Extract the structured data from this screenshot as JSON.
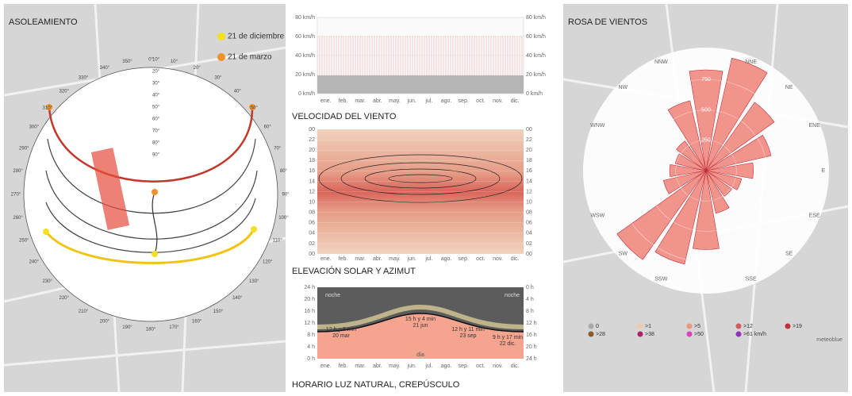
{
  "months": [
    "ene.",
    "feb.",
    "mar.",
    "abr.",
    "may.",
    "jun.",
    "jul.",
    "ago.",
    "sep.",
    "oct.",
    "nov.",
    "dic."
  ],
  "sun_chart": {
    "title": "ASOLEAMIENTO",
    "legend": [
      {
        "label": "21 de diciembre",
        "color": "#f4e01c"
      },
      {
        "label": "21 de marzo",
        "color": "#f0922c"
      }
    ],
    "azimuth_labels": [
      "0°",
      "10°",
      "20°",
      "30°",
      "40°",
      "50°",
      "60°",
      "70°",
      "80°",
      "90°",
      "100°",
      "110°",
      "120°",
      "130°",
      "140°",
      "150°",
      "160°",
      "170°",
      "180°",
      "190°",
      "200°",
      "210°",
      "220°",
      "230°",
      "240°",
      "250°",
      "260°",
      "270°",
      "280°",
      "290°",
      "300°",
      "310°",
      "320°",
      "330°",
      "340°",
      "350°"
    ],
    "altitude_labels": [
      "10°",
      "20°",
      "30°",
      "40°",
      "50°",
      "60°",
      "70°",
      "80°",
      "90°"
    ]
  },
  "wind_speed": {
    "title": "VELOCIDAD DEL VIENTO",
    "axis_labels": [
      "80 km/h",
      "60 km/h",
      "40 km/h",
      "20 km/h",
      "0 km/h"
    ]
  },
  "solar_elevation": {
    "title": "ELEVACIÓN SOLAR Y AZIMUT",
    "axis_labels": [
      "00",
      "22",
      "20",
      "18",
      "16",
      "14",
      "12",
      "10",
      "08",
      "06",
      "04",
      "02",
      "00"
    ]
  },
  "daylight": {
    "title": "HORARIO LUZ NATURAL, CREPÚSCULO",
    "left_labels": [
      "24 h",
      "20 h",
      "16 h",
      "12 h",
      "8 h",
      "4 h",
      "0 h"
    ],
    "right_labels": [
      "0 h",
      "4 h",
      "8 h",
      "12 h",
      "16 h",
      "20 h",
      "24 h"
    ],
    "night": "noche",
    "day": "día",
    "annotations": [
      {
        "duration": "12 h y 8 min",
        "date": "20 mar"
      },
      {
        "duration": "15 h y 4 min",
        "date": "21 jun"
      },
      {
        "duration": "12 h y 11 min",
        "date": "23 sep"
      },
      {
        "duration": "9 h y 17 min",
        "date": "22 dic."
      }
    ]
  },
  "wind_rose": {
    "title": "ROSA DE VIENTOS",
    "directions": [
      null,
      "NNE",
      "NE",
      "ENE",
      "E",
      "ESE",
      "SE",
      "SSE",
      null,
      "SSW",
      "SW",
      "WSW",
      null,
      "WNW",
      "NW",
      "NNW"
    ],
    "values": [
      830,
      950,
      690,
      550,
      390,
      300,
      260,
      360,
      650,
      790,
      900,
      360,
      300,
      260,
      300,
      590
    ],
    "color": "#ee8378",
    "rlim": [
      0,
      1000
    ],
    "rticks": [
      250,
      500,
      750
    ],
    "legend": [
      {
        "label": "0",
        "color": "#aaaaaa"
      },
      {
        "label": ">1",
        "color": "#f2c9a8"
      },
      {
        "label": ">5",
        "color": "#e8987f"
      },
      {
        "label": ">12",
        "color": "#d05a5a"
      },
      {
        "label": ">19",
        "color": "#c0303c"
      },
      {
        "label": ">28",
        "color": "#8b5a2b"
      },
      {
        "label": ">38",
        "color": "#b0206e"
      },
      {
        "label": ">50",
        "color": "#e040c0"
      },
      {
        "label": ">61 km/h",
        "color": "#9030c0"
      }
    ],
    "credit": "meteoblue"
  }
}
